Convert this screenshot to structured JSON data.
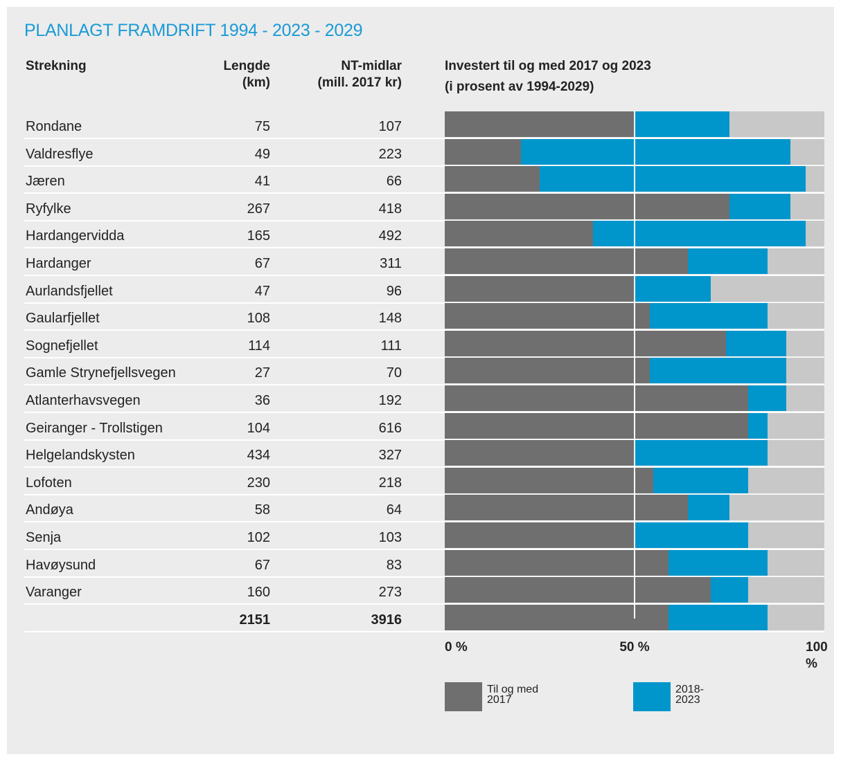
{
  "title": "PLANLAGT FRAMDRIFT 1994 - 2023 - 2029",
  "table": {
    "headers": [
      "Strekning",
      "Lengde\n(km)",
      "NT-midlar\n(mill. 2017 kr)"
    ],
    "rows": [
      [
        "Rondane",
        75,
        107
      ],
      [
        "Valdresflye",
        49,
        223
      ],
      [
        "Jæren",
        41,
        66
      ],
      [
        "Ryfylke",
        267,
        418
      ],
      [
        "Hardangervidda",
        165,
        492
      ],
      [
        "Hardanger",
        67,
        311
      ],
      [
        "Aurlandsfjellet",
        47,
        96
      ],
      [
        "Gaularfjellet",
        108,
        148
      ],
      [
        "Sognefjellet",
        114,
        111
      ],
      [
        "Gamle Strynefjellsvegen",
        27,
        70
      ],
      [
        "Atlanterhavsvegen",
        36,
        192
      ],
      [
        "Geiranger - Trollstigen",
        104,
        616
      ],
      [
        "Helgelandskysten",
        434,
        327
      ],
      [
        "Lofoten",
        230,
        218
      ],
      [
        "Andøya",
        58,
        64
      ],
      [
        "Senja",
        102,
        103
      ],
      [
        "Havøysund",
        67,
        83
      ],
      [
        "Varanger",
        160,
        273
      ]
    ],
    "total": [
      2151,
      3916
    ]
  },
  "chart_data": {
    "type": "stacked-bar-horizontal",
    "title": "Investert til og med 2017 og 2023",
    "subtitle": "(i prosent av 1994-2029)",
    "xlim": [
      0,
      100
    ],
    "xticks": [
      {
        "value": 0,
        "label": "0 %"
      },
      {
        "value": 50,
        "label": "50 %"
      },
      {
        "value": 100,
        "label": "100 %"
      }
    ],
    "grid": true,
    "series": [
      {
        "name": "Til og med 2017",
        "color": "#6f6f6f",
        "values": [
          50,
          20,
          25,
          75,
          39,
          64,
          50,
          54,
          74,
          54,
          80,
          80,
          50,
          55,
          64,
          50,
          59,
          70,
          59
        ]
      },
      {
        "name": "2018-2023",
        "color": "#0096cc",
        "values": [
          25,
          71,
          70,
          16,
          56,
          21,
          20,
          31,
          16,
          36,
          10,
          5,
          35,
          25,
          11,
          30,
          26,
          10,
          26
        ]
      }
    ]
  }
}
